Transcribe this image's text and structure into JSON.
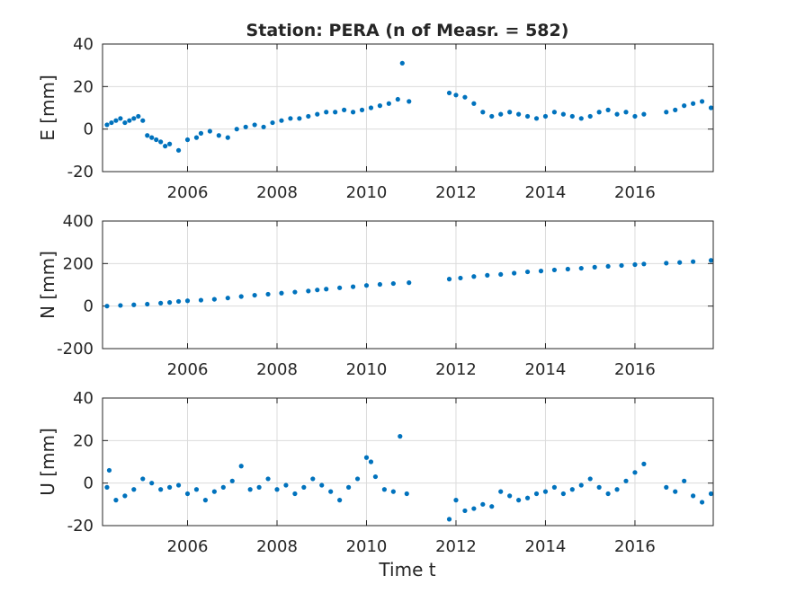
{
  "title": "Station: PERA (n of Measr. = 582)",
  "xlabel": "Time t",
  "colors": {
    "marker": "#0072BD",
    "grid": "#dcdcdc",
    "axis": "#262626"
  },
  "chart_data": [
    {
      "type": "scatter",
      "ylabel": "E [mm]",
      "xlim": [
        2004.1,
        2017.75
      ],
      "ylim": [
        -20,
        40
      ],
      "xticks": [
        2006,
        2008,
        2010,
        2012,
        2014,
        2016
      ],
      "yticks": [
        -20,
        0,
        20,
        40
      ],
      "grid": true,
      "series": [
        {
          "x": [
            2004.2,
            2004.3,
            2004.4,
            2004.5,
            2004.6,
            2004.7,
            2004.8,
            2004.9,
            2005.0,
            2005.1,
            2005.2,
            2005.3,
            2005.4,
            2005.5,
            2005.6,
            2005.8,
            2006.0,
            2006.2,
            2006.3,
            2006.5,
            2006.7,
            2006.9,
            2007.1,
            2007.3,
            2007.5,
            2007.7,
            2007.9,
            2008.1,
            2008.3,
            2008.5,
            2008.7,
            2008.9,
            2009.1,
            2009.3,
            2009.5,
            2009.7,
            2009.9,
            2010.1,
            2010.3,
            2010.5,
            2010.7,
            2010.8,
            2010.95,
            2011.85,
            2012.0,
            2012.2,
            2012.4,
            2012.6,
            2012.8,
            2013.0,
            2013.2,
            2013.4,
            2013.6,
            2013.8,
            2014.0,
            2014.2,
            2014.4,
            2014.6,
            2014.8,
            2015.0,
            2015.2,
            2015.4,
            2015.6,
            2015.8,
            2016.0,
            2016.2,
            2016.7,
            2016.9,
            2017.1,
            2017.3,
            2017.5,
            2017.7
          ],
          "y": [
            2,
            3,
            4,
            5,
            3,
            4,
            5,
            6,
            4,
            -3,
            -4,
            -5,
            -6,
            -8,
            -7,
            -10,
            -5,
            -4,
            -2,
            -1,
            -3,
            -4,
            0,
            1,
            2,
            1,
            3,
            4,
            5,
            5,
            6,
            7,
            8,
            8,
            9,
            8,
            9,
            10,
            11,
            12,
            14,
            31,
            13,
            17,
            16,
            15,
            12,
            8,
            6,
            7,
            8,
            7,
            6,
            5,
            6,
            8,
            7,
            6,
            5,
            6,
            8,
            9,
            7,
            8,
            6,
            7,
            8,
            9,
            11,
            12,
            13,
            10
          ]
        }
      ]
    },
    {
      "type": "scatter",
      "ylabel": "N [mm]",
      "xlim": [
        2004.1,
        2017.75
      ],
      "ylim": [
        -200,
        400
      ],
      "xticks": [
        2006,
        2008,
        2010,
        2012,
        2014,
        2016
      ],
      "yticks": [
        -200,
        0,
        200,
        400
      ],
      "grid": true,
      "series": [
        {
          "x": [
            2004.2,
            2004.5,
            2004.8,
            2005.1,
            2005.4,
            2005.6,
            2005.8,
            2006.0,
            2006.3,
            2006.6,
            2006.9,
            2007.2,
            2007.5,
            2007.8,
            2008.1,
            2008.4,
            2008.7,
            2008.9,
            2009.1,
            2009.4,
            2009.7,
            2010.0,
            2010.3,
            2010.6,
            2010.95,
            2011.85,
            2012.1,
            2012.4,
            2012.7,
            2013.0,
            2013.3,
            2013.6,
            2013.9,
            2014.2,
            2014.5,
            2014.8,
            2015.1,
            2015.4,
            2015.7,
            2016.0,
            2016.2,
            2016.7,
            2017.0,
            2017.3,
            2017.7
          ],
          "y": [
            0,
            3,
            6,
            9,
            14,
            17,
            22,
            25,
            28,
            32,
            38,
            45,
            51,
            56,
            61,
            66,
            71,
            76,
            80,
            86,
            91,
            97,
            102,
            106,
            110,
            127,
            132,
            139,
            145,
            149,
            155,
            161,
            165,
            170,
            174,
            178,
            183,
            187,
            191,
            195,
            198,
            202,
            205,
            209,
            215
          ]
        }
      ]
    },
    {
      "type": "scatter",
      "ylabel": "U [mm]",
      "xlim": [
        2004.1,
        2017.75
      ],
      "ylim": [
        -20,
        40
      ],
      "xticks": [
        2006,
        2008,
        2010,
        2012,
        2014,
        2016
      ],
      "yticks": [
        -20,
        0,
        20,
        40
      ],
      "grid": true,
      "series": [
        {
          "x": [
            2004.2,
            2004.25,
            2004.4,
            2004.6,
            2004.8,
            2005.0,
            2005.2,
            2005.4,
            2005.6,
            2005.8,
            2006.0,
            2006.2,
            2006.4,
            2006.6,
            2006.8,
            2007.0,
            2007.2,
            2007.4,
            2007.6,
            2007.8,
            2008.0,
            2008.2,
            2008.4,
            2008.6,
            2008.8,
            2009.0,
            2009.2,
            2009.4,
            2009.6,
            2009.8,
            2010.0,
            2010.1,
            2010.2,
            2010.4,
            2010.6,
            2010.75,
            2010.9,
            2011.85,
            2012.0,
            2012.2,
            2012.4,
            2012.6,
            2012.8,
            2013.0,
            2013.2,
            2013.4,
            2013.6,
            2013.8,
            2014.0,
            2014.2,
            2014.4,
            2014.6,
            2014.8,
            2015.0,
            2015.2,
            2015.4,
            2015.6,
            2015.8,
            2016.0,
            2016.2,
            2016.7,
            2016.9,
            2017.1,
            2017.3,
            2017.5,
            2017.7
          ],
          "y": [
            -2,
            6,
            -8,
            -6,
            -3,
            2,
            0,
            -3,
            -2,
            -1,
            -5,
            -3,
            -8,
            -4,
            -2,
            1,
            8,
            -3,
            -2,
            2,
            -3,
            -1,
            -5,
            -2,
            2,
            -1,
            -4,
            -8,
            -2,
            2,
            12,
            10,
            3,
            -3,
            -4,
            22,
            -5,
            -17,
            -8,
            -13,
            -12,
            -10,
            -11,
            -4,
            -6,
            -8,
            -7,
            -5,
            -4,
            -2,
            -5,
            -3,
            -1,
            2,
            -2,
            -5,
            -3,
            1,
            5,
            9,
            -2,
            -4,
            1,
            -6,
            -9,
            -5
          ]
        }
      ]
    }
  ]
}
